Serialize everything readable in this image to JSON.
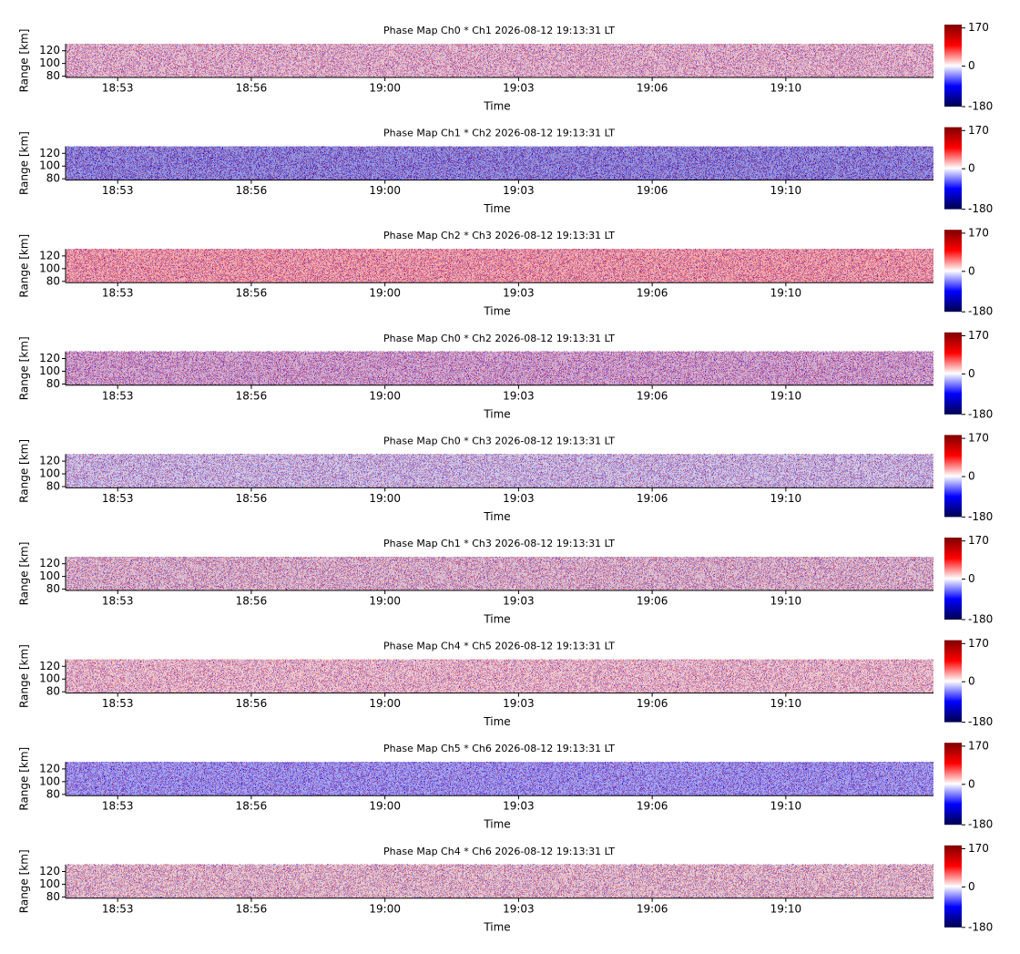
{
  "chart_data": [
    {
      "type": "heatmap",
      "title": "Phase Map Ch0 * Ch1 2026-08-12 19:13:31 LT",
      "xlabel": "Time",
      "ylabel": "Range [km]",
      "color": "#c87a9a",
      "xlim": [
        "18:51:52",
        "19:13:31"
      ],
      "xticks": [
        {
          "value": "18:53:10",
          "label": "18:53"
        },
        {
          "value": "18:56:30",
          "label": "18:56"
        },
        {
          "value": "18:59:50",
          "label": "19:00"
        },
        {
          "value": "19:03:10",
          "label": "19:03"
        },
        {
          "value": "19:06:30",
          "label": "19:06"
        },
        {
          "value": "19:09:50",
          "label": "19:10"
        }
      ],
      "ylim": [
        78,
        131
      ],
      "yticks": [
        80,
        100,
        120
      ],
      "clim": [
        -180,
        185
      ],
      "cticks": [
        170,
        0,
        -180
      ],
      "colormap": [
        "#00004c",
        "#0000ff",
        "#ffffff",
        "#ff0000",
        "#7f0000"
      ]
    },
    {
      "type": "heatmap",
      "title": "Phase Map Ch1 * Ch2 2026-08-12 19:13:31 LT",
      "xlabel": "Time",
      "ylabel": "Range [km]",
      "color": "#1a1ab8",
      "xlim": [
        "18:51:52",
        "19:13:31"
      ],
      "xticks": [
        {
          "value": "18:53:10",
          "label": "18:53"
        },
        {
          "value": "18:56:30",
          "label": "18:56"
        },
        {
          "value": "18:59:50",
          "label": "19:00"
        },
        {
          "value": "19:03:10",
          "label": "19:03"
        },
        {
          "value": "19:06:30",
          "label": "19:06"
        },
        {
          "value": "19:09:50",
          "label": "19:10"
        }
      ],
      "ylim": [
        78,
        131
      ],
      "yticks": [
        80,
        100,
        120
      ],
      "clim": [
        -180,
        185
      ],
      "cticks": [
        170,
        0,
        -180
      ],
      "colormap": [
        "#00004c",
        "#0000ff",
        "#ffffff",
        "#ff0000",
        "#7f0000"
      ]
    },
    {
      "type": "heatmap",
      "title": "Phase Map Ch2 * Ch3 2026-08-12 19:13:31 LT",
      "xlabel": "Time",
      "ylabel": "Range [km]",
      "color": "#e04a55",
      "xlim": [
        "18:51:52",
        "19:13:31"
      ],
      "xticks": [
        {
          "value": "18:53:10",
          "label": "18:53"
        },
        {
          "value": "18:56:30",
          "label": "18:56"
        },
        {
          "value": "18:59:50",
          "label": "19:00"
        },
        {
          "value": "19:03:10",
          "label": "19:03"
        },
        {
          "value": "19:06:30",
          "label": "19:06"
        },
        {
          "value": "19:09:50",
          "label": "19:10"
        }
      ],
      "ylim": [
        78,
        131
      ],
      "yticks": [
        80,
        100,
        120
      ],
      "clim": [
        -180,
        185
      ],
      "cticks": [
        170,
        0,
        -180
      ],
      "colormap": [
        "#00004c",
        "#0000ff",
        "#ffffff",
        "#ff0000",
        "#7f0000"
      ]
    },
    {
      "type": "heatmap",
      "title": "Phase Map Ch0 * Ch2 2026-08-12 19:13:31 LT",
      "xlabel": "Time",
      "ylabel": "Range [km]",
      "color": "#a0529a",
      "xlim": [
        "18:51:52",
        "19:13:31"
      ],
      "xticks": [
        {
          "value": "18:53:10",
          "label": "18:53"
        },
        {
          "value": "18:56:30",
          "label": "18:56"
        },
        {
          "value": "18:59:50",
          "label": "19:00"
        },
        {
          "value": "19:03:10",
          "label": "19:03"
        },
        {
          "value": "19:06:30",
          "label": "19:06"
        },
        {
          "value": "19:09:50",
          "label": "19:10"
        }
      ],
      "ylim": [
        78,
        131
      ],
      "yticks": [
        80,
        100,
        120
      ],
      "clim": [
        -180,
        185
      ],
      "cticks": [
        170,
        0,
        -180
      ],
      "colormap": [
        "#00004c",
        "#0000ff",
        "#ffffff",
        "#ff0000",
        "#7f0000"
      ]
    },
    {
      "type": "heatmap",
      "title": "Phase Map Ch0 * Ch3 2026-08-12 19:13:31 LT",
      "xlabel": "Time",
      "ylabel": "Range [km]",
      "color": "#9a88c8",
      "xlim": [
        "18:51:52",
        "19:13:31"
      ],
      "xticks": [
        {
          "value": "18:53:10",
          "label": "18:53"
        },
        {
          "value": "18:56:30",
          "label": "18:56"
        },
        {
          "value": "18:59:50",
          "label": "19:00"
        },
        {
          "value": "19:03:10",
          "label": "19:03"
        },
        {
          "value": "19:06:30",
          "label": "19:06"
        },
        {
          "value": "19:09:50",
          "label": "19:10"
        }
      ],
      "ylim": [
        78,
        131
      ],
      "yticks": [
        80,
        100,
        120
      ],
      "clim": [
        -180,
        185
      ],
      "cticks": [
        170,
        0,
        -180
      ],
      "colormap": [
        "#00004c",
        "#0000ff",
        "#ffffff",
        "#ff0000",
        "#7f0000"
      ]
    },
    {
      "type": "heatmap",
      "title": "Phase Map Ch1 * Ch3 2026-08-12 19:13:31 LT",
      "xlabel": "Time",
      "ylabel": "Range [km]",
      "color": "#b87a9a",
      "xlim": [
        "18:51:52",
        "19:13:31"
      ],
      "xticks": [
        {
          "value": "18:53:10",
          "label": "18:53"
        },
        {
          "value": "18:56:30",
          "label": "18:56"
        },
        {
          "value": "18:59:50",
          "label": "19:00"
        },
        {
          "value": "19:03:10",
          "label": "19:03"
        },
        {
          "value": "19:06:30",
          "label": "19:06"
        },
        {
          "value": "19:09:50",
          "label": "19:10"
        }
      ],
      "ylim": [
        78,
        131
      ],
      "yticks": [
        80,
        100,
        120
      ],
      "clim": [
        -180,
        185
      ],
      "cticks": [
        170,
        0,
        -180
      ],
      "colormap": [
        "#00004c",
        "#0000ff",
        "#ffffff",
        "#ff0000",
        "#7f0000"
      ]
    },
    {
      "type": "heatmap",
      "title": "Phase Map Ch4 * Ch5 2026-08-12 19:13:31 LT",
      "xlabel": "Time",
      "ylabel": "Range [km]",
      "color": "#d88a9a",
      "xlim": [
        "18:51:52",
        "19:13:31"
      ],
      "xticks": [
        {
          "value": "18:53:10",
          "label": "18:53"
        },
        {
          "value": "18:56:30",
          "label": "18:56"
        },
        {
          "value": "18:59:50",
          "label": "19:00"
        },
        {
          "value": "19:03:10",
          "label": "19:03"
        },
        {
          "value": "19:06:30",
          "label": "19:06"
        },
        {
          "value": "19:09:50",
          "label": "19:10"
        }
      ],
      "ylim": [
        78,
        131
      ],
      "yticks": [
        80,
        100,
        120
      ],
      "clim": [
        -180,
        185
      ],
      "cticks": [
        170,
        0,
        -180
      ],
      "colormap": [
        "#00004c",
        "#0000ff",
        "#ffffff",
        "#ff0000",
        "#7f0000"
      ]
    },
    {
      "type": "heatmap",
      "title": "Phase Map Ch5 * Ch6 2026-08-12 19:13:31 LT",
      "xlabel": "Time",
      "ylabel": "Range [km]",
      "color": "#3a3ae0",
      "xlim": [
        "18:51:52",
        "19:13:31"
      ],
      "xticks": [
        {
          "value": "18:53:10",
          "label": "18:53"
        },
        {
          "value": "18:56:30",
          "label": "18:56"
        },
        {
          "value": "18:59:50",
          "label": "19:00"
        },
        {
          "value": "19:03:10",
          "label": "19:03"
        },
        {
          "value": "19:06:30",
          "label": "19:06"
        },
        {
          "value": "19:09:50",
          "label": "19:10"
        }
      ],
      "ylim": [
        78,
        131
      ],
      "yticks": [
        80,
        100,
        120
      ],
      "clim": [
        -180,
        185
      ],
      "cticks": [
        170,
        0,
        -180
      ],
      "colormap": [
        "#00004c",
        "#0000ff",
        "#ffffff",
        "#ff0000",
        "#7f0000"
      ]
    },
    {
      "type": "heatmap",
      "title": "Phase Map Ch4 * Ch6 2026-08-12 19:13:31 LT",
      "xlabel": "Time",
      "ylabel": "Range [km]",
      "color": "#c88a9a",
      "xlim": [
        "18:51:52",
        "19:13:31"
      ],
      "xticks": [
        {
          "value": "18:53:10",
          "label": "18:53"
        },
        {
          "value": "18:56:30",
          "label": "18:56"
        },
        {
          "value": "18:59:50",
          "label": "19:00"
        },
        {
          "value": "19:03:10",
          "label": "19:03"
        },
        {
          "value": "19:06:30",
          "label": "19:06"
        },
        {
          "value": "19:09:50",
          "label": "19:10"
        }
      ],
      "ylim": [
        78,
        131
      ],
      "yticks": [
        80,
        100,
        120
      ],
      "clim": [
        -180,
        185
      ],
      "cticks": [
        170,
        0,
        -180
      ],
      "colormap": [
        "#00004c",
        "#0000ff",
        "#ffffff",
        "#ff0000",
        "#7f0000"
      ]
    }
  ]
}
